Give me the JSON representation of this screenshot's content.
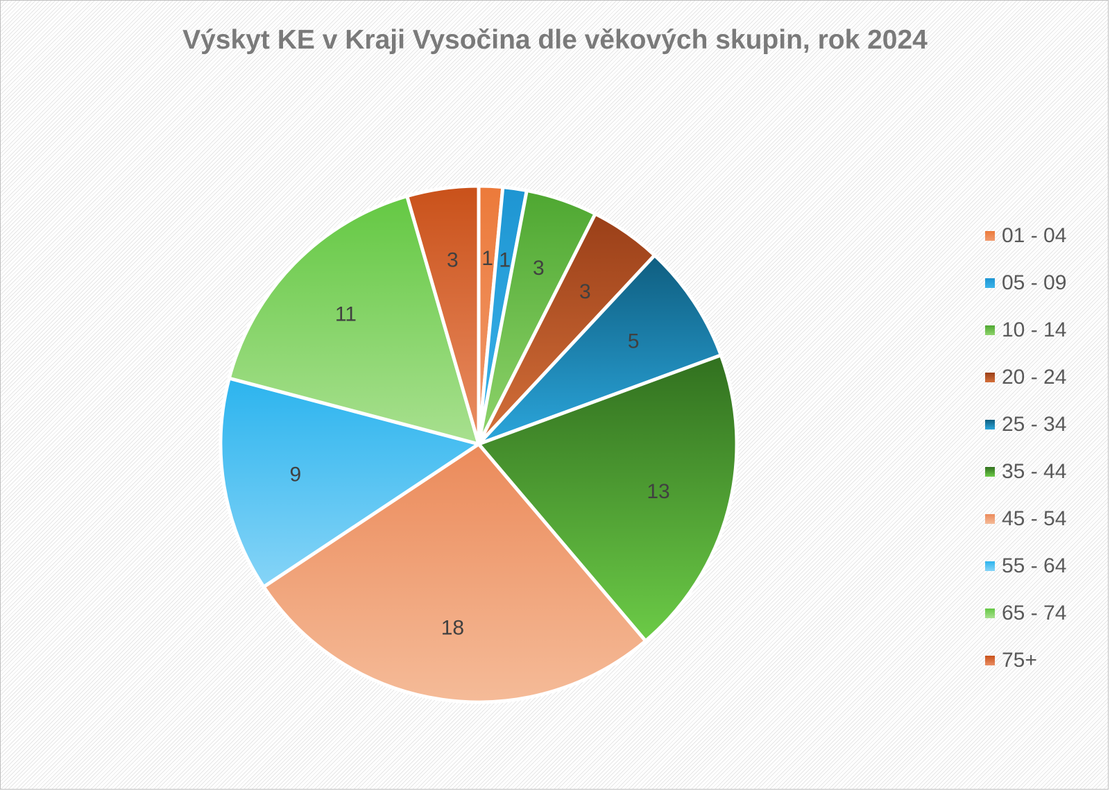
{
  "chart_data": {
    "type": "pie",
    "title": "Výskyt KE v Kraji Vysočina dle věkových skupin,  rok 2024",
    "legend_position": "right",
    "categories": [
      "01 - 04",
      "05 - 09",
      "10 - 14",
      "20 - 24",
      "25 - 34",
      "35 - 44",
      "45 - 54",
      "55 - 64",
      "65 - 74",
      "75+"
    ],
    "values": [
      1,
      1,
      3,
      3,
      5,
      13,
      18,
      9,
      11,
      3
    ],
    "colors": [
      "#ED7D31",
      "#1A9BD7",
      "#4EA72E",
      "#A5451D",
      "#156082",
      "#3A7D22",
      "#F4B183",
      "#3BB9F0",
      "#6ECD48",
      "#CB5217"
    ],
    "gradients": [
      [
        "#EC7A3A",
        "#F09A6E"
      ],
      [
        "#1E95D2",
        "#3BB4EA"
      ],
      [
        "#4EA731",
        "#8FD46C"
      ],
      [
        "#9A3F18",
        "#D4703A"
      ],
      [
        "#0F5E80",
        "#2BA6DC"
      ],
      [
        "#31701F",
        "#6CCB47"
      ],
      [
        "#EB8A5A",
        "#F5BB98"
      ],
      [
        "#2CB4EE",
        "#86D4F7"
      ],
      [
        "#64C843",
        "#A8E08F"
      ],
      [
        "#C9511A",
        "#EA8E63"
      ]
    ]
  }
}
